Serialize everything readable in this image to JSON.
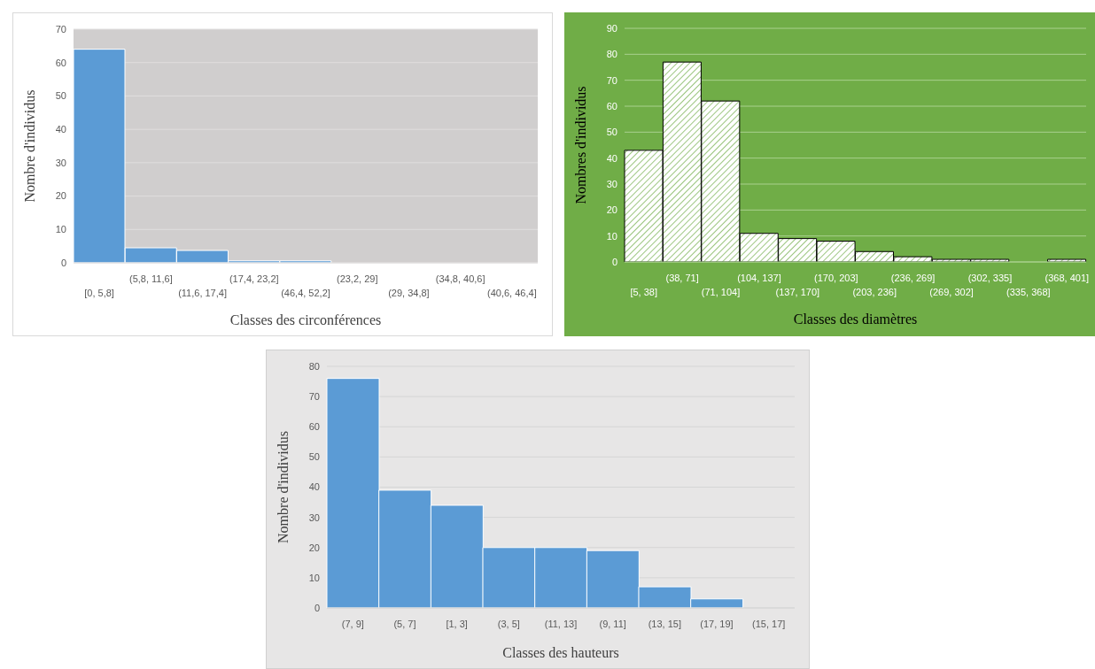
{
  "chart_data": [
    {
      "type": "bar",
      "xlabel": "Classes des circonférences",
      "ylabel": "Nombre d'individus",
      "categories": [
        "[0, 5,8]",
        "(5,8, 11,6]",
        "(11,6, 17,4]",
        "(17,4, 23,2]",
        "(46,4, 52,2]",
        "(23,2, 29]",
        "(29, 34,8]",
        "(34,8, 40,6]",
        "(40,6, 46,4]"
      ],
      "values": [
        64,
        4.5,
        3.7,
        0.6,
        0.6,
        0,
        0,
        0,
        0
      ],
      "color": "#5b9bd5",
      "ylim": [
        0,
        70
      ],
      "yticks": [
        0,
        10,
        20,
        30,
        40,
        50,
        60,
        70
      ],
      "grid": "y"
    },
    {
      "type": "bar",
      "xlabel": "Classes des diamètres",
      "ylabel": "Nombres d'individus",
      "categories": [
        "[5, 38]",
        "(38, 71]",
        "(71, 104]",
        "(104, 137]",
        "(137, 170]",
        "(170, 203]",
        "(203, 236]",
        "(236, 269]",
        "(269, 302]",
        "(302, 335]",
        "(335, 368]",
        "(368, 401]"
      ],
      "values": [
        43,
        77,
        62,
        11,
        9,
        8,
        4,
        2,
        1,
        1,
        0,
        1
      ],
      "color": "#000000",
      "ylim": [
        0,
        90
      ],
      "yticks": [
        0,
        10,
        20,
        30,
        40,
        50,
        60,
        70,
        80,
        90
      ],
      "grid": "y"
    },
    {
      "type": "bar",
      "xlabel": "Classes des hauteurs",
      "ylabel": "Nombre d'individus",
      "categories": [
        "(7, 9]",
        "(5, 7]",
        "[1, 3]",
        "(3, 5]",
        "(11, 13]",
        "(9, 11]",
        "(13, 15]",
        "(17, 19]",
        "(15, 17]"
      ],
      "values": [
        76,
        39,
        34,
        20,
        20,
        19,
        7,
        3,
        0
      ],
      "color": "#5b9bd5",
      "ylim": [
        0,
        80
      ],
      "yticks": [
        0,
        10,
        20,
        30,
        40,
        50,
        60,
        70,
        80
      ],
      "grid": "y"
    }
  ]
}
